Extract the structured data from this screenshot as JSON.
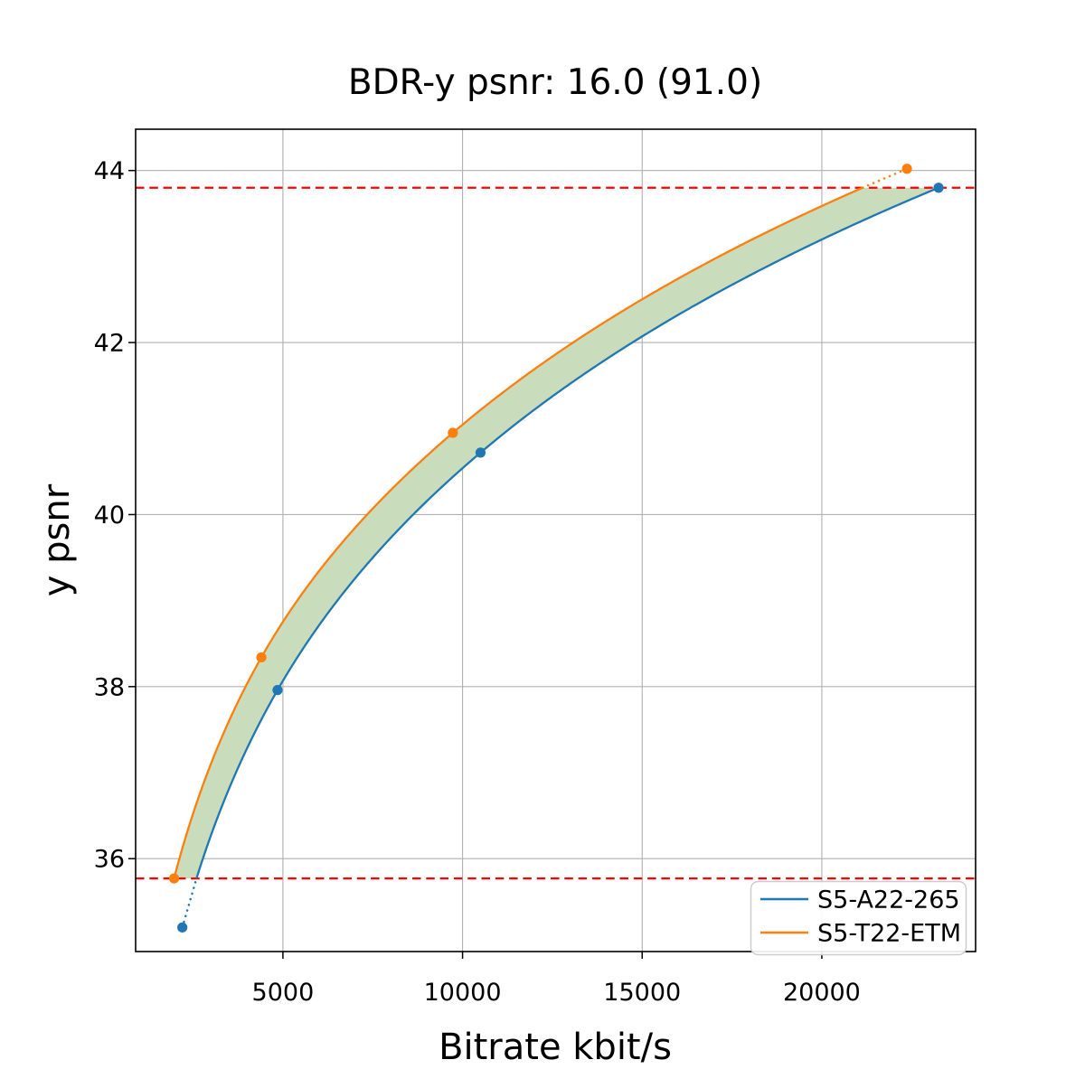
{
  "chart_data": {
    "type": "line",
    "title": "BDR-y psnr: 16.0 (91.0)",
    "xlabel": "Bitrate kbit/s",
    "ylabel": "y psnr",
    "xlim": [
      900,
      24280
    ],
    "ylim": [
      34.92,
      44.48
    ],
    "xticks": [
      5000,
      10000,
      15000,
      20000
    ],
    "yticks": [
      36,
      38,
      40,
      42,
      44
    ],
    "grid": true,
    "grid_color": "#b0b0b0",
    "legend_position": "lower right",
    "series": [
      {
        "name": "S5-A22-265",
        "color": "#1f77b4",
        "points": [
          [
            2200,
            35.2
          ],
          [
            4850,
            37.96
          ],
          [
            10500,
            40.72
          ],
          [
            23250,
            43.8
          ]
        ]
      },
      {
        "name": "S5-T22-ETM",
        "color": "#ff7f0e",
        "points": [
          [
            1970,
            35.77
          ],
          [
            4400,
            38.34
          ],
          [
            9730,
            40.95
          ],
          [
            22370,
            44.02
          ]
        ]
      }
    ],
    "overlap_lines": {
      "color": "#ff0000",
      "low": 35.77,
      "high": 43.8
    },
    "fill_between_color": "#c9dcbc"
  }
}
